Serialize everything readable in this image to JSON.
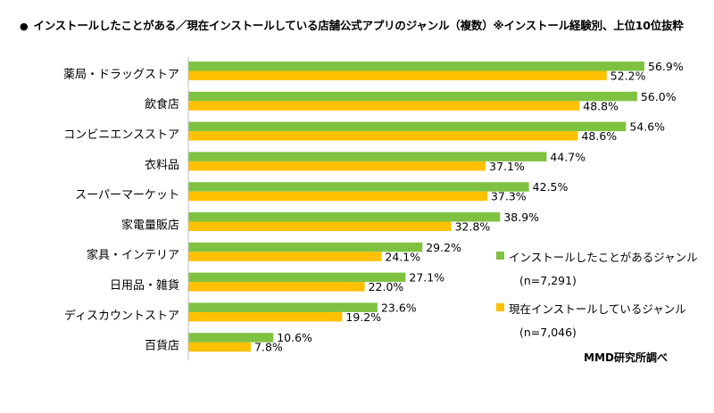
{
  "title": "インストールしたことがある／現在インストールしている店舗公式アプリのジャンル（複数）※インストール経験別、上位10位抜粋",
  "source": "MMD研究所調べ",
  "colors": {
    "installed_ever": "#7fc241",
    "installed_now": "#ffc000"
  },
  "chart_data": {
    "type": "bar",
    "orientation": "horizontal",
    "categories": [
      "薬局・ドラッグストア",
      "飲食店",
      "コンビニエンスストア",
      "衣料品",
      "スーパーマーケット",
      "家電量販店",
      "家具・インテリア",
      "日用品・雑貨",
      "ディスカウントストア",
      "百貨店"
    ],
    "series": [
      {
        "name": "インストールしたことがあるジャンル",
        "n": "(n=7,291)",
        "color": "#7fc241",
        "values": [
          56.9,
          56.0,
          54.6,
          44.7,
          42.5,
          38.9,
          29.2,
          27.1,
          23.6,
          10.6
        ]
      },
      {
        "name": "現在インストールしているジャンル",
        "n": "(n=7,046)",
        "color": "#ffc000",
        "values": [
          52.2,
          48.8,
          48.6,
          37.1,
          37.3,
          32.8,
          24.1,
          22.0,
          19.2,
          7.8
        ]
      }
    ],
    "value_suffix": "%",
    "xlim": [
      0,
      60
    ],
    "grid": false,
    "legend_position": "right"
  }
}
